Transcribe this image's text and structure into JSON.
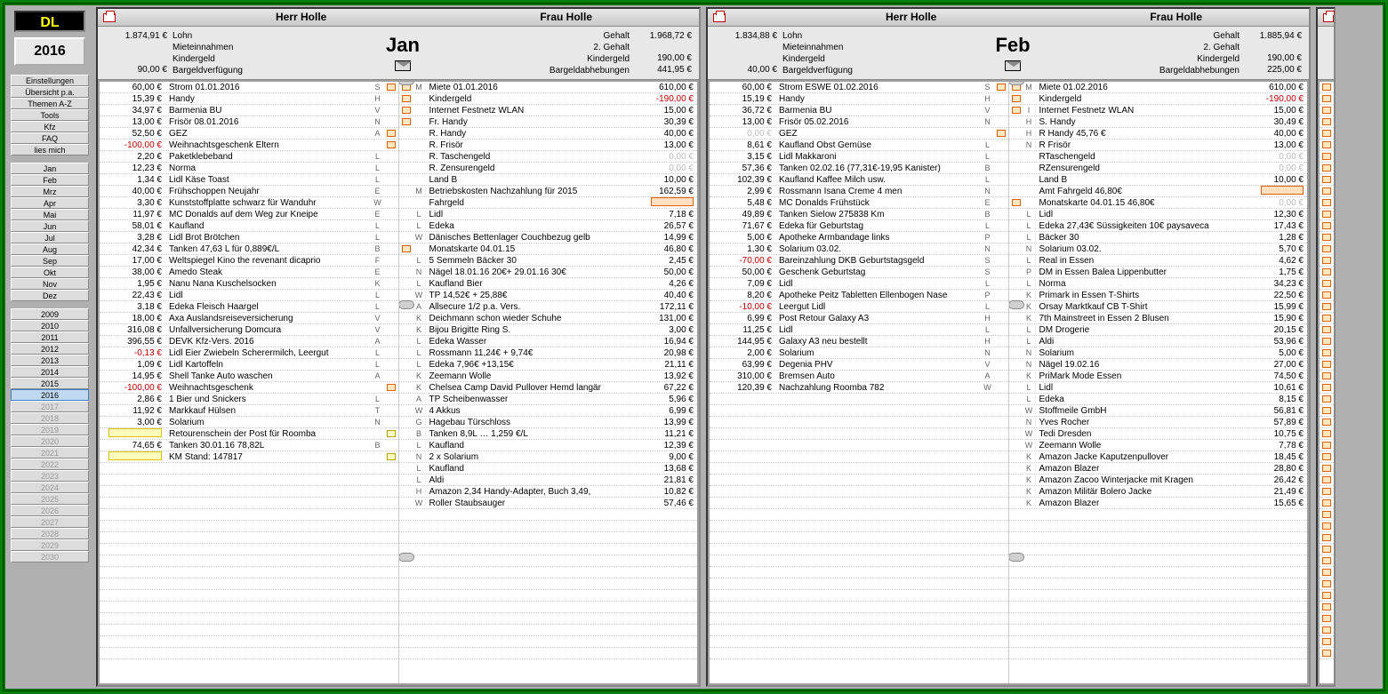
{
  "app": {
    "badge": "DL",
    "year": "2016"
  },
  "sidebar": {
    "settings": [
      "Einstellungen",
      "Übersicht p.a.",
      "Themen A-Z",
      "Tools",
      "Kfz",
      "FAQ",
      "lies mich"
    ],
    "months": [
      "Jan",
      "Feb",
      "Mrz",
      "Apr",
      "Mai",
      "Jun",
      "Jul",
      "Aug",
      "Sep",
      "Okt",
      "Nov",
      "Dez"
    ],
    "years": [
      "2009",
      "2010",
      "2011",
      "2012",
      "2013",
      "2014",
      "2015",
      "2016",
      "2017",
      "2018",
      "2019",
      "2020",
      "2021",
      "2022",
      "2023",
      "2024",
      "2025",
      "2026",
      "2027",
      "2028",
      "2029",
      "2030"
    ],
    "selected_year": "2016"
  },
  "panels": [
    {
      "month": "Jan",
      "header": {
        "left_name": "Herr Holle",
        "right_name": "Frau Holle"
      },
      "summary_left": [
        {
          "amt": "1.874,91 €",
          "lbl": "Lohn"
        },
        {
          "amt": "",
          "lbl": "Mieteinnahmen"
        },
        {
          "amt": "",
          "lbl": "Kindergeld"
        },
        {
          "amt": "90,00 €",
          "lbl": "Bargeldverfügung"
        }
      ],
      "summary_right": [
        {
          "lbl": "Gehalt",
          "amt": "1.968,72 €"
        },
        {
          "lbl": "2. Gehalt",
          "amt": ""
        },
        {
          "lbl": "Kindergeld",
          "amt": "190,00 €"
        },
        {
          "lbl": "Bargeldabhebungen",
          "amt": "441,95 €"
        }
      ],
      "left_rows": [
        {
          "amt": "60,00 €",
          "desc": "Strom 01.01.2016",
          "cat": "S",
          "mk": "r"
        },
        {
          "amt": "15,39 €",
          "desc": "Handy",
          "cat": "H"
        },
        {
          "amt": "34,97 €",
          "desc": "Barmenia BU",
          "cat": "V"
        },
        {
          "amt": "13,00 €",
          "desc": "Frisör 08.01.2016",
          "cat": "N"
        },
        {
          "amt": "52,50 €",
          "desc": "GEZ",
          "cat": "A",
          "mk": "r"
        },
        {
          "amt": "-100,00 €",
          "desc": "Weihnachtsgeschenk Eltern",
          "cat": "",
          "neg": true,
          "mk": "r"
        },
        {
          "amt": "2,20 €",
          "desc": "Paketklebeband",
          "cat": "L"
        },
        {
          "amt": "12,23 €",
          "desc": "Norma",
          "cat": "L"
        },
        {
          "amt": "1,34 €",
          "desc": "Lidl Käse Toast",
          "cat": "L"
        },
        {
          "amt": "40,00 €",
          "desc": "Frühschoppen Neujahr",
          "cat": "E"
        },
        {
          "amt": "3,30 €",
          "desc": "Kunststoffplatte schwarz für Wanduhr",
          "cat": "W"
        },
        {
          "amt": "11,97 €",
          "desc": "MC Donalds auf dem Weg zur Kneipe",
          "cat": "E"
        },
        {
          "amt": "58,01 €",
          "desc": "Kaufland",
          "cat": "L"
        },
        {
          "amt": "3,28 €",
          "desc": "Lidl Brot Brötchen",
          "cat": "L"
        },
        {
          "amt": "42,34 €",
          "desc": "Tanken 47,63 L für 0,889€/L",
          "cat": "B"
        },
        {
          "amt": "17,00 €",
          "desc": "Weltspiegel Kino the revenant dicaprio",
          "cat": "F"
        },
        {
          "amt": "38,00 €",
          "desc": "Amedo Steak",
          "cat": "E"
        },
        {
          "amt": "1,95 €",
          "desc": "Nanu Nana Kuschelsocken",
          "cat": "K"
        },
        {
          "amt": "22,43 €",
          "desc": "Lidl",
          "cat": "L"
        },
        {
          "amt": "3,18 €",
          "desc": "Edeka Fleisch Haargel",
          "cat": "L"
        },
        {
          "amt": "18,00 €",
          "desc": "Axa Auslandsreiseversicherung",
          "cat": "V"
        },
        {
          "amt": "316,08 €",
          "desc": "Unfallversicherung Domcura",
          "cat": "V"
        },
        {
          "amt": "396,55 €",
          "desc": "DEVK Kfz-Vers. 2016",
          "cat": "A"
        },
        {
          "amt": "-0,13 €",
          "desc": "Lidl Eier Zwiebeln Scherermilch, Leergut",
          "cat": "L",
          "neg": true
        },
        {
          "amt": "1,09 €",
          "desc": "Lidl Kartoffeln",
          "cat": "L"
        },
        {
          "amt": "14,95 €",
          "desc": "Shell Tanke Auto waschen",
          "cat": "A"
        },
        {
          "amt": "-100,00 €",
          "desc": "Weihnachtsgeschenk",
          "cat": "",
          "neg": true,
          "mk": "r"
        },
        {
          "amt": "2,86 €",
          "desc": "1 Bier und Snickers",
          "cat": "L"
        },
        {
          "amt": "11,92 €",
          "desc": "Markkauf Hülsen",
          "cat": "T"
        },
        {
          "amt": "3,00 €",
          "desc": "Solarium",
          "cat": "N"
        },
        {
          "amt": "",
          "desc": "Retourenschein der Post für Roomba",
          "cat": "",
          "mk": "y",
          "hlrow": "y"
        },
        {
          "amt": "74,65 €",
          "desc": "Tanken 30.01.16 78,82L",
          "cat": "B"
        },
        {
          "amt": "",
          "desc": "KM Stand: 147817",
          "cat": "",
          "mk": "y",
          "hlrow": "y"
        }
      ],
      "right_rows": [
        {
          "tag": "M",
          "desc": "Miete 01.01.2016",
          "amt": "610,00 €",
          "mk": "r"
        },
        {
          "tag": "",
          "desc": "Kindergeld",
          "amt": "-190,00 €",
          "neg": true,
          "mk": "r"
        },
        {
          "tag": "",
          "desc": "Internet Festnetz WLAN",
          "amt": "15,00 €",
          "mk": "r"
        },
        {
          "tag": "",
          "desc": "Fr. Handy",
          "amt": "30,39 €",
          "mk": "r"
        },
        {
          "tag": "",
          "desc": "R. Handy",
          "amt": "40,00 €"
        },
        {
          "tag": "",
          "desc": "R. Frisör",
          "amt": "13,00 €"
        },
        {
          "tag": "",
          "desc": "R. Taschengeld",
          "amt": "0,00 €",
          "dim": true
        },
        {
          "tag": "",
          "desc": "R. Zensurengeld",
          "amt": "0,00 €",
          "dim": true
        },
        {
          "tag": "",
          "desc": "Land B",
          "amt": "10,00 €"
        },
        {
          "tag": "M",
          "desc": "Betriebskosten Nachzahlung für 2015",
          "amt": "162,59 €"
        },
        {
          "tag": "",
          "desc": "Fahrgeld",
          "amt": "",
          "hlrow": "r"
        },
        {
          "tag": "L",
          "desc": "Lidl",
          "amt": "7,18 €"
        },
        {
          "tag": "L",
          "desc": "Edeka",
          "amt": "26,57 €"
        },
        {
          "tag": "W",
          "desc": "Dänisches Bettenlager Couchbezug gelb",
          "amt": "14,99 €"
        },
        {
          "tag": "",
          "desc": "Monatskarte 04.01.15",
          "amt": "46,80 €",
          "mk": "r"
        },
        {
          "tag": "L",
          "desc": "5 Semmeln Bäcker 30",
          "amt": "2,45 €"
        },
        {
          "tag": "N",
          "desc": "Nägel 18.01.16 20€+ 29.01.16 30€",
          "amt": "50,00 €"
        },
        {
          "tag": "L",
          "desc": "Kaufland Bier",
          "amt": "4,26 €"
        },
        {
          "tag": "W",
          "desc": "TP 14,52€ + 25,88€",
          "amt": "40,40 €"
        },
        {
          "tag": "A",
          "desc": "Allsecure 1/2 p.a. Vers.",
          "amt": "172,11 €"
        },
        {
          "tag": "K",
          "desc": "Deichmann schon wieder Schuhe",
          "amt": "131,00 €"
        },
        {
          "tag": "K",
          "desc": "Bijou Brigitte Ring S.",
          "amt": "3,00 €"
        },
        {
          "tag": "L",
          "desc": "Edeka Wasser",
          "amt": "16,94 €"
        },
        {
          "tag": "L",
          "desc": "Rossmann 11,24€ + 9,74€",
          "amt": "20,98 €"
        },
        {
          "tag": "L",
          "desc": "Edeka 7,96€ +13,15€",
          "amt": "21,11 €"
        },
        {
          "tag": "K",
          "desc": "Zeemann Wolle",
          "amt": "13,92 €"
        },
        {
          "tag": "K",
          "desc": "Chelsea Camp David Pullover Hemd langär",
          "amt": "67,22 €"
        },
        {
          "tag": "A",
          "desc": "TP Scheibenwasser",
          "amt": "5,96 €"
        },
        {
          "tag": "W",
          "desc": "4 Akkus",
          "amt": "6,99 €"
        },
        {
          "tag": "G",
          "desc": "Hagebau Türschloss",
          "amt": "13,99 €"
        },
        {
          "tag": "B",
          "desc": "Tanken 8,9L … 1,259 €/L",
          "amt": "11,21 €"
        },
        {
          "tag": "L",
          "desc": "Kaufland",
          "amt": "12,39 €"
        },
        {
          "tag": "N",
          "desc": "2 x Solarium",
          "amt": "9,00 €"
        },
        {
          "tag": "L",
          "desc": "Kaufland",
          "amt": "13,68 €"
        },
        {
          "tag": "L",
          "desc": "Aldi",
          "amt": "21,81 €"
        },
        {
          "tag": "H",
          "desc": "Amazon 2,34 Handy-Adapter, Buch 3,49,",
          "amt": "10,82 €"
        },
        {
          "tag": "W",
          "desc": "Roller Staubsauger",
          "amt": "57,46 €"
        }
      ]
    },
    {
      "month": "Feb",
      "header": {
        "left_name": "Herr Holle",
        "right_name": "Frau Holle"
      },
      "summary_left": [
        {
          "amt": "1.834,88 €",
          "lbl": "Lohn"
        },
        {
          "amt": "",
          "lbl": "Mieteinnahmen"
        },
        {
          "amt": "",
          "lbl": "Kindergeld"
        },
        {
          "amt": "40,00 €",
          "lbl": "Bargeldverfügung"
        }
      ],
      "summary_right": [
        {
          "lbl": "Gehalt",
          "amt": "1.885,94 €"
        },
        {
          "lbl": "2. Gehalt",
          "amt": ""
        },
        {
          "lbl": "Kindergeld",
          "amt": "190,00 €"
        },
        {
          "lbl": "Bargeldabhebungen",
          "amt": "225,00 €"
        }
      ],
      "left_rows": [
        {
          "amt": "60,00 €",
          "desc": "Strom ESWE 01.02.2016",
          "cat": "S",
          "mk": "r"
        },
        {
          "amt": "15,19 €",
          "desc": "Handy",
          "cat": "H"
        },
        {
          "amt": "36,72 €",
          "desc": "Barmenia BU",
          "cat": "V"
        },
        {
          "amt": "13,00 €",
          "desc": "Frisör 05.02.2016",
          "cat": "N"
        },
        {
          "amt": "0,00 €",
          "desc": "GEZ",
          "cat": "",
          "dim": true,
          "mk": "r"
        },
        {
          "amt": "8,61 €",
          "desc": "Kaufland Obst Gemüse",
          "cat": "L"
        },
        {
          "amt": "3,15 €",
          "desc": "Lidl Makkaroni",
          "cat": "L"
        },
        {
          "amt": "57,36 €",
          "desc": "Tanken 02.02.16 (77,31€-19,95 Kanister)",
          "cat": "B"
        },
        {
          "amt": "102,39 €",
          "desc": "Kaufland Kaffee Milch usw.",
          "cat": "L"
        },
        {
          "amt": "2,99 €",
          "desc": "Rossmann Isana Creme 4 men",
          "cat": "N"
        },
        {
          "amt": "5,48 €",
          "desc": "MC Donalds Frühstück",
          "cat": "E"
        },
        {
          "amt": "49,89 €",
          "desc": "Tanken  Sielow 275838 Km",
          "cat": "B"
        },
        {
          "amt": "71,67 €",
          "desc": "Edeka für Geburtstag",
          "cat": "L"
        },
        {
          "amt": "5,00 €",
          "desc": "Apotheke Armbandage links",
          "cat": "P"
        },
        {
          "amt": "1,30 €",
          "desc": "Solarium 03.02.",
          "cat": "N"
        },
        {
          "amt": "-70,00 €",
          "desc": "Bareinzahlung DKB Geburtstagsgeld",
          "cat": "S",
          "neg": true
        },
        {
          "amt": "50,00 €",
          "desc": "Geschenk Geburtstag",
          "cat": "S"
        },
        {
          "amt": "7,09 €",
          "desc": "Lidl",
          "cat": "L"
        },
        {
          "amt": "8,20 €",
          "desc": "Apotheke Peitz Tabletten Ellenbogen Nase",
          "cat": "P"
        },
        {
          "amt": "-10,00 €",
          "desc": "Leergut Lidl",
          "cat": "L",
          "neg": true
        },
        {
          "amt": "6,99 €",
          "desc": "Post Retour Galaxy A3",
          "cat": "H"
        },
        {
          "amt": "11,25 €",
          "desc": "Lidl",
          "cat": "L"
        },
        {
          "amt": "144,95 €",
          "desc": "Galaxy A3 neu bestellt",
          "cat": "H"
        },
        {
          "amt": "2,00 €",
          "desc": "Solarium",
          "cat": "N"
        },
        {
          "amt": "63,99 €",
          "desc": "Degenia PHV",
          "cat": "V"
        },
        {
          "amt": "310,00 €",
          "desc": "Bremsen Auto",
          "cat": "A"
        },
        {
          "amt": "120,39 €",
          "desc": "Nachzahlung Roomba 782",
          "cat": "W"
        }
      ],
      "right_rows": [
        {
          "tag": "M",
          "desc": "Miete 01.02.2016",
          "amt": "610,00 €",
          "mk": "r"
        },
        {
          "tag": "",
          "desc": "Kindergeld",
          "amt": "-190,00 €",
          "neg": true,
          "mk": "r"
        },
        {
          "tag": "I",
          "desc": "Internet Festnetz WLAN",
          "amt": "15,00 €",
          "mk": "r"
        },
        {
          "tag": "H",
          "desc": "S. Handy",
          "amt": "30,49 €"
        },
        {
          "tag": "H",
          "desc": "R Handy 45,76 €",
          "amt": "40,00 €"
        },
        {
          "tag": "N",
          "desc": "R Frisör",
          "amt": "13,00 €"
        },
        {
          "tag": "",
          "desc": "RTaschengeld",
          "amt": "0,00 €",
          "dim": true
        },
        {
          "tag": "",
          "desc": "RZensurengeld",
          "amt": "0,00 €",
          "dim": true
        },
        {
          "tag": "",
          "desc": "Land B",
          "amt": "10,00 €"
        },
        {
          "tag": "",
          "desc": "Amt Fahrgeld 46,80€",
          "amt": "",
          "hlrow": "r"
        },
        {
          "tag": "",
          "desc": "Monatskarte 04.01.15 46,80€",
          "amt": "0,00 €",
          "dim": true,
          "mk": "r"
        },
        {
          "tag": "L",
          "desc": "Lidl",
          "amt": "12,30 €"
        },
        {
          "tag": "L",
          "desc": "Edeka 27,43€ Süssigkeiten 10€ paysaveca",
          "amt": "17,43 €"
        },
        {
          "tag": "L",
          "desc": "Bäcker 30",
          "amt": "1,28 €"
        },
        {
          "tag": "N",
          "desc": "Solarium 03.02.",
          "amt": "5,70 €"
        },
        {
          "tag": "L",
          "desc": "Real in Essen",
          "amt": "4,62 €"
        },
        {
          "tag": "P",
          "desc": "DM in Essen Balea Lippenbutter",
          "amt": "1,75 €"
        },
        {
          "tag": "L",
          "desc": "Norma",
          "amt": "34,23 €"
        },
        {
          "tag": "K",
          "desc": "Primark in Essen T-Shirts",
          "amt": "22,50 €"
        },
        {
          "tag": "K",
          "desc": "Orsay Marktkauf CB T-Shirt",
          "amt": "15,99 €"
        },
        {
          "tag": "K",
          "desc": "7th Mainstreet in Essen 2 Blusen",
          "amt": "15,90 €"
        },
        {
          "tag": "L",
          "desc": "DM Drogerie",
          "amt": "20,15 €"
        },
        {
          "tag": "L",
          "desc": "Aldi",
          "amt": "53,96 €"
        },
        {
          "tag": "N",
          "desc": "Solarium",
          "amt": "5,00 €"
        },
        {
          "tag": "N",
          "desc": "Nägel 19.02.16",
          "amt": "27,00 €"
        },
        {
          "tag": "K",
          "desc": "PriMark Mode Essen",
          "amt": "74,50 €"
        },
        {
          "tag": "L",
          "desc": "Lidl",
          "amt": "10,61 €"
        },
        {
          "tag": "L",
          "desc": "Edeka",
          "amt": "8,15 €"
        },
        {
          "tag": "W",
          "desc": "Stoffmeile GmbH",
          "amt": "56,81 €"
        },
        {
          "tag": "N",
          "desc": "Yves Rocher",
          "amt": "57,89 €"
        },
        {
          "tag": "W",
          "desc": "Tedi Dresden",
          "amt": "10,75 €"
        },
        {
          "tag": "W",
          "desc": "Zeemann Wolle",
          "amt": "7,78 €"
        },
        {
          "tag": "K",
          "desc": "Amazon Jacke Kaputzenpullover",
          "amt": "18,45 €"
        },
        {
          "tag": "K",
          "desc": "Amazon Blazer",
          "amt": "28,80 €"
        },
        {
          "tag": "K",
          "desc": "Amazon Zacoo Winterjacke mit Kragen",
          "amt": "26,42 €"
        },
        {
          "tag": "K",
          "desc": "Amazon Militär Bolero Jacke",
          "amt": "21,49 €"
        },
        {
          "tag": "K",
          "desc": "Amazon Blazer",
          "amt": "15,65 €"
        }
      ]
    }
  ]
}
